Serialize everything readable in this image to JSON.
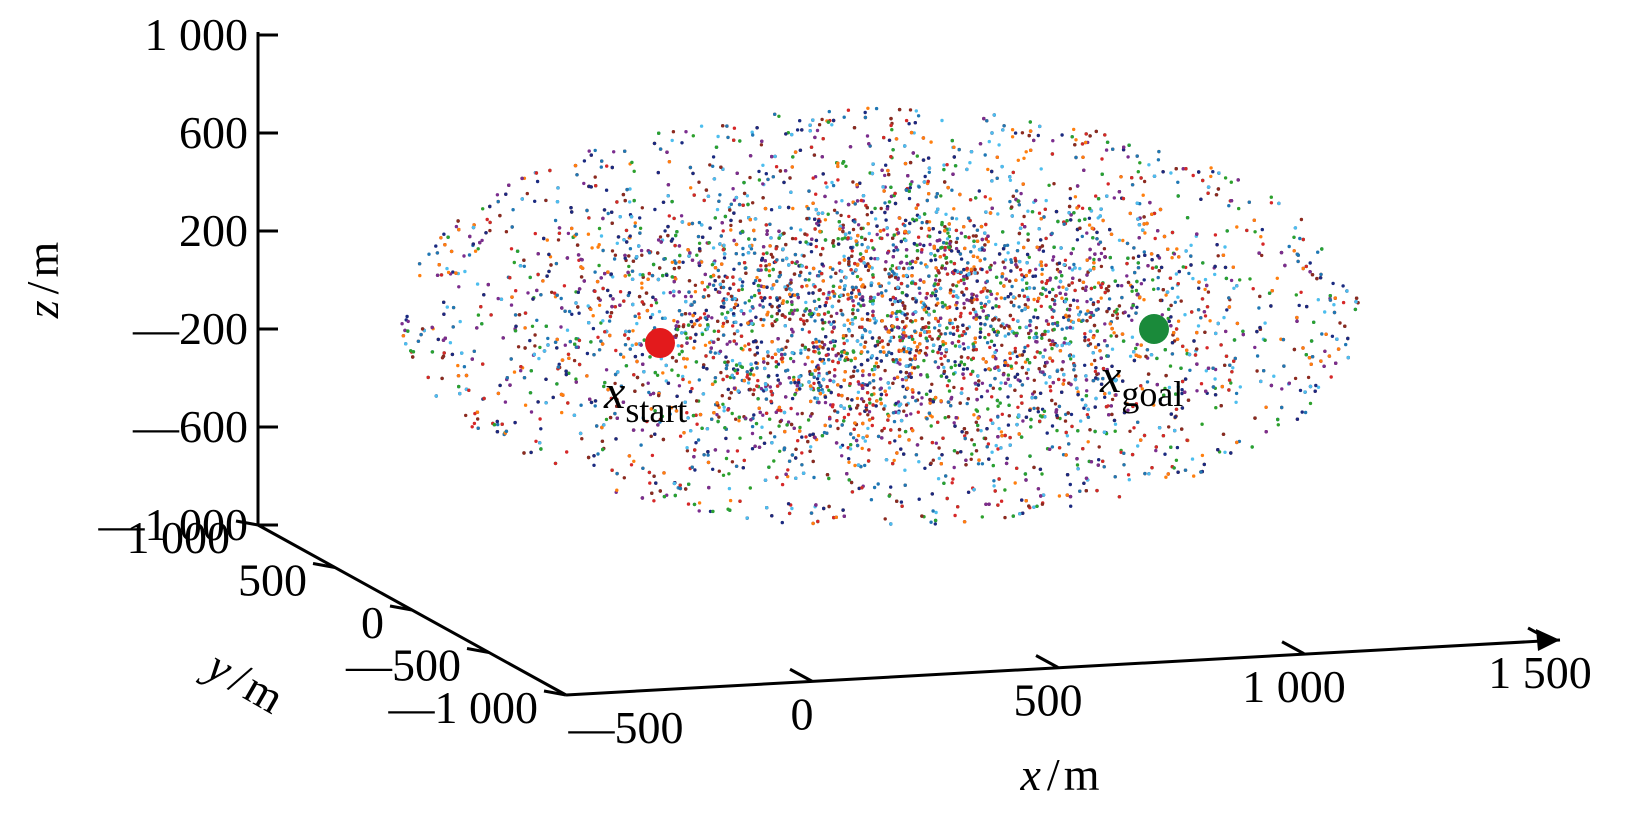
{
  "chart_data": {
    "type": "scatter",
    "title": "",
    "projection": "3d",
    "x_axis": {
      "label_var": "x",
      "label_unit": "m",
      "range": [
        -500,
        1500
      ],
      "ticks": [
        -500,
        0,
        500,
        1000,
        1500
      ],
      "tick_labels": [
        "—500",
        "0",
        "500",
        "1 000",
        "1 500"
      ]
    },
    "y_axis": {
      "label_var": "y",
      "label_unit": "m",
      "range": [
        -1000,
        1000
      ],
      "ticks": [
        1000,
        500,
        0,
        -500,
        -1000
      ],
      "tick_labels": [
        "1 000",
        "500",
        "0",
        "—500",
        "—1 000"
      ]
    },
    "z_axis": {
      "label_var": "z",
      "label_unit": "m",
      "range": [
        -1000,
        1000
      ],
      "ticks": [
        1000,
        600,
        200,
        -200,
        -600,
        -1000
      ],
      "tick_labels": [
        "1 000",
        "600",
        "200",
        "—200",
        "—600",
        "—1 000"
      ]
    },
    "point_cloud": {
      "description_shape": "ellipsoid",
      "center": [
        450,
        0,
        -250
      ],
      "semi_axes": [
        900,
        1000,
        500
      ],
      "point_colors": [
        "#1f77b4",
        "#d62728",
        "#ff7f0e",
        "#2ca02c",
        "#7b2d8e",
        "#4dbeee",
        "#8c2a1f",
        "#1a2a80"
      ]
    },
    "markers": [
      {
        "name": "start",
        "label_main": "x",
        "label_sub": "start",
        "color": "#e31a1c"
      },
      {
        "name": "goal",
        "label_main": "x",
        "label_sub": "goal",
        "color": "#1a8a3a"
      }
    ],
    "grid": false,
    "legend": "none"
  }
}
